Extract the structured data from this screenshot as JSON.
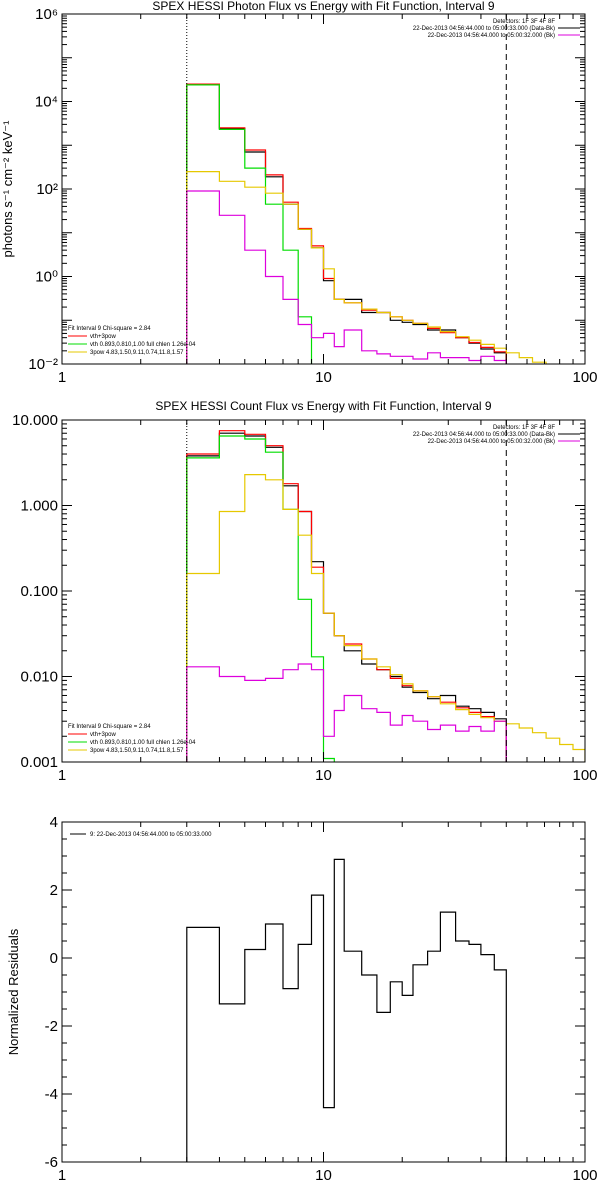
{
  "chart_data": [
    {
      "type": "line",
      "title": "SPEX HESSI Photon Flux vs Energy with Fit Function, Interval 9",
      "ylabel": "photons s⁻¹ cm⁻² keV⁻¹",
      "xlabel": "",
      "xscale": "log",
      "yscale": "log",
      "xlim": [
        1,
        100
      ],
      "ylim": [
        0.01,
        1000000
      ],
      "x_ticks": [
        "1",
        "10",
        "100"
      ],
      "y_ticks": [
        {
          "v": 0.01,
          "label": "10⁻²"
        },
        {
          "v": 1,
          "label": "10⁰"
        },
        {
          "v": 100,
          "label": "10²"
        },
        {
          "v": 10000,
          "label": "10⁴"
        },
        {
          "v": 1000000,
          "label": "10⁶"
        }
      ],
      "vlines": [
        {
          "x": 3,
          "style": "dotted"
        },
        {
          "x": 50,
          "style": "dashed"
        }
      ],
      "legend_top_right": [
        "Detectors: 1F 3F 4F 8F",
        "22-Dec-2013 04:56:44.000 to 05:00:33.000 (Data-Bk)",
        "22-Dec-2013 04:56:44.000 to 05:00:32.000 (Bk)"
      ],
      "legend_bottom_left": [
        "Fit Interval 9   Chi-square = 2.84",
        "vth+3pow",
        "vth 0.893,0.810,1.00  full chlen 1.26e-04",
        "3pow 4.83,1.50,9.11,0.74,11.8,1.57"
      ],
      "edges": [
        3,
        4,
        5,
        6,
        7,
        8,
        9,
        10,
        11,
        12,
        14,
        16,
        18,
        20,
        22,
        25,
        28,
        32,
        36,
        40,
        45,
        50,
        56,
        63,
        71,
        80
      ],
      "series": [
        {
          "name": "(Data-Bk)",
          "color": "#000000",
          "values": [
            25000,
            2400,
            700,
            190,
            45,
            12,
            4.5,
            0.8,
            0.3,
            0.3,
            0.15,
            0.15,
            0.1,
            0.09,
            0.08,
            0.06,
            0.06,
            0.04,
            0.03,
            0.022,
            0.018,
            null,
            null,
            null,
            null
          ]
        },
        {
          "name": "vth+3pow",
          "color": "#ff0000",
          "values": [
            25000,
            2500,
            780,
            210,
            50,
            12.5,
            5,
            0.9,
            0.3,
            0.25,
            0.17,
            0.15,
            0.12,
            0.1,
            0.085,
            0.065,
            0.052,
            0.04,
            0.031,
            0.024,
            0.019,
            null,
            null,
            null,
            null
          ]
        },
        {
          "name": "vth 0.893,0.810,1.00  full chlen 1.26e-04",
          "color": "#00dd00",
          "values": [
            24000,
            2300,
            300,
            45,
            4,
            0.12,
            0.0003,
            null,
            null,
            null,
            null,
            null,
            null,
            null,
            null,
            null,
            null,
            null,
            null,
            null,
            null,
            null,
            null,
            null,
            null
          ]
        },
        {
          "name": "3pow 4.83,1.50,9.11,0.74,11.8,1.57",
          "color": "#e6c800",
          "values": [
            250,
            150,
            110,
            80,
            45,
            12,
            4.5,
            1.5,
            0.3,
            0.25,
            0.18,
            0.15,
            0.12,
            0.1,
            0.085,
            0.07,
            0.055,
            0.042,
            0.035,
            0.028,
            0.023,
            0.018,
            0.014,
            0.011,
            0.009
          ]
        },
        {
          "name": "(Bk)",
          "color": "#dd00dd",
          "values": [
            90,
            25,
            4,
            1,
            0.3,
            0.08,
            0.04,
            0.05,
            0.025,
            0.06,
            0.02,
            0.017,
            0.015,
            0.015,
            0.013,
            0.018,
            0.014,
            0.014,
            0.012,
            0.015,
            0.012,
            null,
            null,
            null,
            null
          ]
        }
      ]
    },
    {
      "type": "line",
      "title": "SPEX HESSI Count Flux vs Energy with Fit Function, Interval 9",
      "ylabel": "",
      "xlabel": "",
      "xscale": "log",
      "yscale": "log",
      "xlim": [
        1,
        100
      ],
      "ylim": [
        0.001,
        10
      ],
      "x_ticks": [
        "1",
        "10",
        "100"
      ],
      "y_ticks": [
        {
          "v": 0.001,
          "label": "0.001"
        },
        {
          "v": 0.01,
          "label": "0.010"
        },
        {
          "v": 0.1,
          "label": "0.100"
        },
        {
          "v": 1,
          "label": "1.000"
        },
        {
          "v": 10,
          "label": "10.000"
        }
      ],
      "vlines": [
        {
          "x": 3,
          "style": "dotted"
        },
        {
          "x": 50,
          "style": "dashed"
        }
      ],
      "legend_top_right": [
        "Detectors: 1F 3F 4F 8F",
        "22-Dec-2013 04:56:44.000 to 05:00:33.000 (Data-Bk)",
        "22-Dec-2013 04:56:44.000 to 05:00:32.000 (Bk)"
      ],
      "legend_bottom_left": [
        "Fit Interval 9   Chi-square = 2.84",
        "vth+3pow",
        "vth 0.893,0.810,1.00  full chlen 1.26e-04",
        "3pow 4.83,1.50,9.11,0.74,11.8,1.57"
      ],
      "edges": [
        3,
        4,
        5,
        6,
        7,
        8,
        9,
        10,
        11,
        12,
        14,
        16,
        18,
        20,
        22,
        25,
        28,
        32,
        36,
        40,
        45,
        50,
        56,
        63,
        71,
        80,
        90,
        100
      ],
      "series": [
        {
          "name": "(Data-Bk)",
          "color": "#000000",
          "values": [
            3.8,
            7.0,
            6.5,
            4.8,
            1.7,
            0.85,
            0.22,
            0.055,
            0.03,
            0.02,
            0.014,
            0.012,
            0.01,
            0.0075,
            0.0065,
            0.0055,
            0.006,
            0.0045,
            0.0042,
            0.0038,
            0.0032,
            null,
            null,
            null,
            null,
            null,
            null
          ]
        },
        {
          "name": "vth+3pow",
          "color": "#ff0000",
          "values": [
            4.0,
            7.5,
            6.8,
            5.0,
            1.8,
            0.85,
            0.19,
            0.055,
            0.03,
            0.024,
            0.016,
            0.012,
            0.0095,
            0.0078,
            0.0068,
            0.0058,
            0.005,
            0.0043,
            0.0038,
            0.0034,
            0.003,
            null,
            null,
            null,
            null,
            null,
            null
          ]
        },
        {
          "name": "vth 0.893,0.810,1.00  full chlen 1.26e-04",
          "color": "#00dd00",
          "values": [
            3.6,
            6.5,
            6.0,
            4.2,
            0.9,
            0.08,
            0.017,
            0.0011,
            null,
            null,
            null,
            null,
            null,
            null,
            null,
            null,
            null,
            null,
            null,
            null,
            null,
            null,
            null,
            null,
            null,
            null,
            null
          ]
        },
        {
          "name": "3pow 4.83,1.50,9.11,0.74,11.8,1.57",
          "color": "#e6c800",
          "values": [
            0.16,
            0.85,
            2.3,
            2.0,
            0.9,
            0.45,
            0.16,
            0.055,
            0.03,
            0.023,
            0.016,
            0.013,
            0.0105,
            0.0082,
            0.0068,
            0.0058,
            0.0048,
            0.0041,
            0.0036,
            0.0033,
            0.003,
            0.0028,
            0.0025,
            0.0022,
            0.0019,
            0.0016,
            0.0014
          ]
        },
        {
          "name": "(Bk)",
          "color": "#dd00dd",
          "values": [
            0.013,
            0.01,
            0.009,
            0.0095,
            0.012,
            0.014,
            0.012,
            0.002,
            0.004,
            0.006,
            0.0042,
            0.0038,
            0.0027,
            0.0035,
            0.003,
            0.0024,
            0.0027,
            0.0023,
            0.0026,
            0.0023,
            0.003,
            null,
            null,
            null,
            null,
            null,
            null
          ]
        }
      ]
    },
    {
      "type": "line",
      "title": "",
      "ylabel": "Normalized Residuals",
      "xlabel": "",
      "xscale": "log",
      "yscale": "linear",
      "xlim": [
        1,
        100
      ],
      "ylim": [
        -6,
        4
      ],
      "x_ticks": [
        "1",
        "10",
        "100"
      ],
      "y_ticks": [
        {
          "v": 4,
          "label": "4"
        },
        {
          "v": 2,
          "label": "2"
        },
        {
          "v": 0,
          "label": "0"
        },
        {
          "v": -2,
          "label": "-2"
        },
        {
          "v": -4,
          "label": "-4"
        },
        {
          "v": -6,
          "label": "-6"
        }
      ],
      "legend_top_left": [
        "9: 22-Dec-2013 04:56:44.000 to 05:00:33.000"
      ],
      "edges": [
        3,
        4,
        5,
        6,
        7,
        8,
        9,
        10,
        11,
        12,
        14,
        16,
        18,
        20,
        22,
        25,
        28,
        32,
        36,
        40,
        45,
        50
      ],
      "series": [
        {
          "name": "9: 22-Dec-2013 04:56:44.000 to 05:00:33.000",
          "color": "#000000",
          "values": [
            0.9,
            -1.35,
            0.25,
            1.0,
            -0.9,
            0.4,
            1.85,
            -4.4,
            2.9,
            0.2,
            -0.5,
            -1.6,
            -0.7,
            -1.1,
            -0.2,
            0.2,
            1.35,
            0.5,
            0.4,
            0.1,
            -0.35
          ]
        }
      ]
    }
  ]
}
